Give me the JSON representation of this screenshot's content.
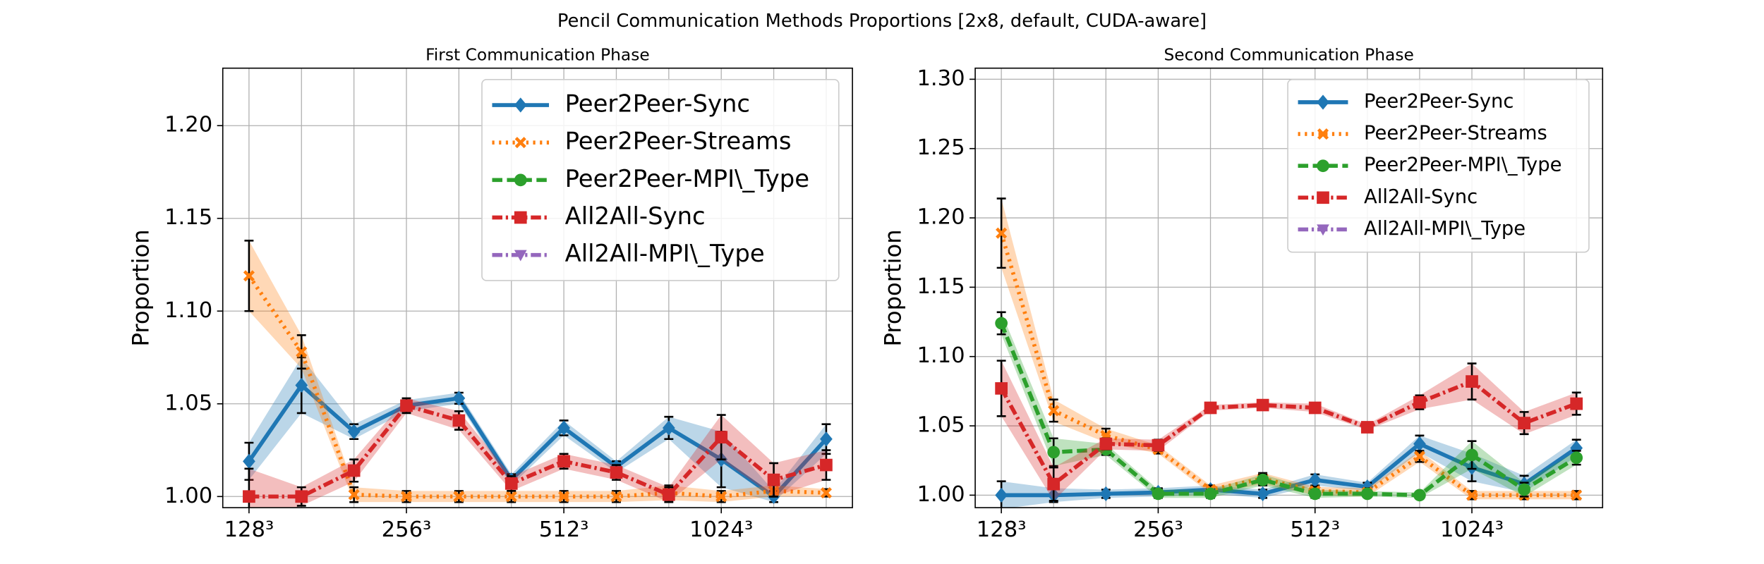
{
  "title": "Pencil Communication Methods Proportions [2x8, default, CUDA-aware]",
  "chart_data": [
    {
      "type": "line",
      "title": "First Communication Phase",
      "ylabel": "Proportion",
      "categories": [
        "128³",
        null,
        null,
        "256³",
        null,
        null,
        "512³",
        null,
        null,
        "1024³",
        null,
        null
      ],
      "ylim": [
        0.994,
        1.231
      ],
      "yticks": [
        {
          "value": 1.0,
          "label": "1.00"
        },
        {
          "value": 1.05,
          "label": "1.05"
        },
        {
          "value": 1.1,
          "label": "1.10"
        },
        {
          "value": 1.15,
          "label": "1.15"
        },
        {
          "value": 1.2,
          "label": "1.20"
        }
      ],
      "grid": true,
      "legend_loc": "upper right",
      "series": [
        {
          "name": "Peer2Peer-Sync",
          "color": "#1f77b4",
          "linestyle": "solid",
          "marker": "diamond",
          "values": [
            1.019,
            1.06,
            1.035,
            1.049,
            1.053,
            1.009,
            1.037,
            1.016,
            1.037,
            1.02,
            1.0,
            1.031
          ],
          "errors": [
            0.01,
            0.015,
            0.004,
            0.003,
            0.003,
            0.003,
            0.004,
            0.003,
            0.006,
            0.015,
            0.003,
            0.008
          ]
        },
        {
          "name": "Peer2Peer-Streams",
          "color": "#ff7f0e",
          "linestyle": "dotted",
          "marker": "x",
          "values": [
            1.119,
            1.078,
            1.001,
            1.0,
            1.0,
            1.0,
            1.0,
            1.0,
            1.002,
            1.0,
            1.003,
            1.002
          ],
          "errors": [
            0.019,
            0.009,
            0.004,
            0.003,
            0.003,
            0.003,
            0.003,
            0.003,
            0.004,
            0.003,
            0.003,
            0.002
          ]
        },
        {
          "name": "Peer2Peer-MPI\\_Type",
          "color": "#2ca02c",
          "linestyle": "dashed",
          "marker": "circle",
          "values": [
            null,
            null,
            null,
            null,
            null,
            null,
            null,
            null,
            null,
            null,
            null,
            null
          ],
          "errors": [
            null,
            null,
            null,
            null,
            null,
            null,
            null,
            null,
            null,
            null,
            null,
            null
          ]
        },
        {
          "name": "All2All-Sync",
          "color": "#d62728",
          "linestyle": "dashdot",
          "marker": "square",
          "values": [
            1.0,
            1.0,
            1.014,
            1.049,
            1.041,
            1.007,
            1.019,
            1.013,
            1.001,
            1.032,
            1.009,
            1.017
          ],
          "errors": [
            0.015,
            0.005,
            0.006,
            0.004,
            0.005,
            0.004,
            0.004,
            0.004,
            0.004,
            0.012,
            0.009,
            0.008
          ]
        },
        {
          "name": "All2All-MPI\\_Type",
          "color": "#9467bd",
          "linestyle": "dashdot",
          "marker": "triangle-down",
          "values": [
            null,
            null,
            null,
            null,
            null,
            null,
            null,
            null,
            null,
            null,
            null,
            null
          ],
          "errors": [
            null,
            null,
            null,
            null,
            null,
            null,
            null,
            null,
            null,
            null,
            null,
            null
          ]
        }
      ]
    },
    {
      "type": "line",
      "title": "Second Communication Phase",
      "ylabel": "Proportion",
      "categories": [
        "128³",
        null,
        null,
        "256³",
        null,
        null,
        "512³",
        null,
        null,
        "1024³",
        null,
        null
      ],
      "ylim": [
        0.991,
        1.308
      ],
      "yticks": [
        {
          "value": 1.0,
          "label": "1.00"
        },
        {
          "value": 1.05,
          "label": "1.05"
        },
        {
          "value": 1.1,
          "label": "1.10"
        },
        {
          "value": 1.15,
          "label": "1.15"
        },
        {
          "value": 1.2,
          "label": "1.20"
        },
        {
          "value": 1.25,
          "label": "1.25"
        },
        {
          "value": 1.3,
          "label": "1.30"
        }
      ],
      "grid": true,
      "legend_loc": "upper right",
      "series": [
        {
          "name": "Peer2Peer-Sync",
          "color": "#1f77b4",
          "linestyle": "solid",
          "marker": "diamond",
          "values": [
            1.0,
            1.0,
            1.001,
            1.002,
            1.004,
            1.001,
            1.011,
            1.006,
            1.037,
            1.02,
            1.008,
            1.034
          ],
          "errors": [
            0.01,
            0.005,
            0.003,
            0.003,
            0.003,
            0.003,
            0.004,
            0.003,
            0.006,
            0.01,
            0.006,
            0.006
          ]
        },
        {
          "name": "Peer2Peer-Streams",
          "color": "#ff7f0e",
          "linestyle": "dotted",
          "marker": "x",
          "values": [
            1.189,
            1.061,
            1.043,
            1.033,
            1.004,
            1.012,
            1.003,
            1.002,
            1.028,
            1.0,
            1.0,
            1.0
          ],
          "errors": [
            0.025,
            0.008,
            0.005,
            0.003,
            0.003,
            0.004,
            0.003,
            0.003,
            0.004,
            0.003,
            0.003,
            0.003
          ]
        },
        {
          "name": "Peer2Peer-MPI\\_Type",
          "color": "#2ca02c",
          "linestyle": "dashed",
          "marker": "circle",
          "values": [
            1.124,
            1.031,
            1.033,
            1.001,
            1.001,
            1.011,
            1.001,
            1.001,
            1.0,
            1.029,
            1.004,
            1.027
          ],
          "errors": [
            0.008,
            0.01,
            0.004,
            0.003,
            0.003,
            0.004,
            0.003,
            0.002,
            0.002,
            0.01,
            0.005,
            0.005
          ]
        },
        {
          "name": "All2All-Sync",
          "color": "#d62728",
          "linestyle": "dashdot",
          "marker": "square",
          "values": [
            1.077,
            1.008,
            1.037,
            1.036,
            1.063,
            1.065,
            1.063,
            1.049,
            1.067,
            1.082,
            1.052,
            1.066
          ],
          "errors": [
            0.02,
            0.012,
            0.004,
            0.004,
            0.002,
            0.002,
            0.003,
            0.002,
            0.005,
            0.013,
            0.008,
            0.008
          ]
        },
        {
          "name": "All2All-MPI\\_Type",
          "color": "#9467bd",
          "linestyle": "dashdot",
          "marker": "triangle-down",
          "values": [
            null,
            null,
            null,
            null,
            null,
            null,
            null,
            null,
            null,
            null,
            null,
            null
          ],
          "errors": [
            null,
            null,
            null,
            null,
            null,
            null,
            null,
            null,
            null,
            null,
            null,
            null
          ]
        }
      ]
    }
  ]
}
